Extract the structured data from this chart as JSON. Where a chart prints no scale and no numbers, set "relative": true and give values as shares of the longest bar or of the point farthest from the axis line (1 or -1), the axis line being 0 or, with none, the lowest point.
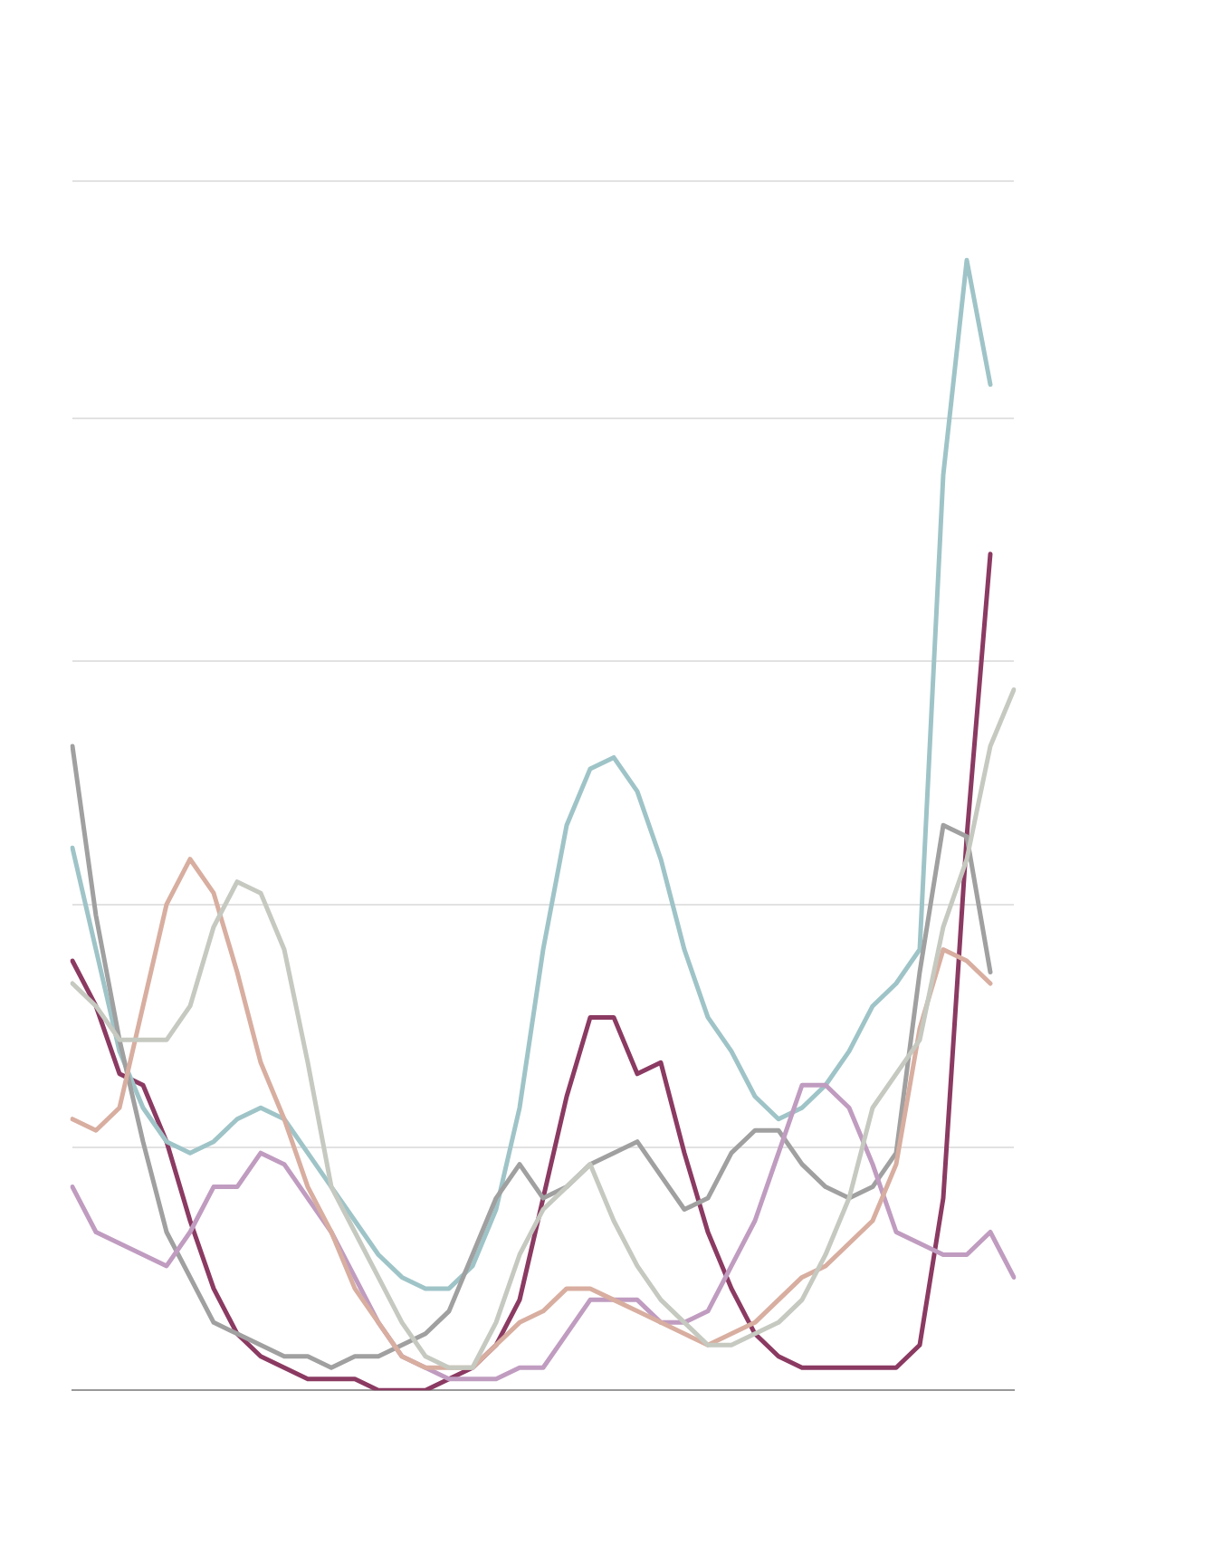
{
  "chart_data": {
    "type": "line",
    "relative": true,
    "grid": "y",
    "legend": false,
    "marker": "none",
    "line_style": "solid",
    "categories": [
      null,
      null,
      null,
      null,
      null,
      null,
      null,
      null,
      null,
      null,
      null,
      null,
      null,
      null,
      null,
      null,
      null,
      null,
      null,
      null,
      null,
      null,
      null,
      null,
      null,
      null,
      null,
      null,
      null,
      null,
      null,
      null,
      null,
      null,
      null,
      null,
      null,
      null,
      null,
      null,
      null
    ],
    "series": [
      {
        "color": "#c5c9c0",
        "values": [
          0.36,
          0.34,
          0.31,
          0.31,
          0.31,
          0.34,
          0.41,
          0.45,
          0.44,
          0.39,
          0.29,
          0.18,
          0.14,
          0.1,
          0.06,
          0.03,
          0.02,
          0.02,
          0.06,
          0.12,
          0.16,
          0.18,
          0.2,
          0.15,
          0.11,
          0.08,
          0.06,
          0.04,
          0.04,
          0.05,
          0.06,
          0.08,
          0.12,
          0.17,
          0.25,
          0.28,
          0.31,
          0.41,
          0.47,
          0.57,
          0.62
        ]
      },
      {
        "color": "#d8aea0",
        "values": [
          0.24,
          0.23,
          0.25,
          0.34,
          0.43,
          0.47,
          0.44,
          0.37,
          0.29,
          0.24,
          0.18,
          0.14,
          0.09,
          0.06,
          0.03,
          0.02,
          0.02,
          0.02,
          0.04,
          0.06,
          0.07,
          0.09,
          0.09,
          0.08,
          0.07,
          0.06,
          0.05,
          0.04,
          0.05,
          0.06,
          0.08,
          0.1,
          0.11,
          0.13,
          0.15,
          0.2,
          0.32,
          0.39,
          0.38,
          0.36,
          null
        ]
      },
      {
        "color": "#c09cc0",
        "values": [
          0.18,
          0.14,
          0.13,
          0.12,
          0.11,
          0.14,
          0.18,
          0.18,
          0.21,
          0.2,
          0.17,
          0.14,
          0.1,
          0.06,
          0.03,
          0.02,
          0.01,
          0.01,
          0.01,
          0.02,
          0.02,
          0.05,
          0.08,
          0.08,
          0.08,
          0.06,
          0.06,
          0.07,
          0.11,
          0.15,
          0.21,
          0.27,
          0.27,
          0.25,
          0.2,
          0.14,
          0.13,
          0.12,
          0.12,
          0.14,
          0.1
        ]
      },
      {
        "color": "#a0a0a0",
        "values": [
          0.57,
          0.42,
          0.31,
          0.22,
          0.14,
          0.1,
          0.06,
          0.05,
          0.04,
          0.03,
          0.03,
          0.02,
          0.03,
          0.03,
          0.04,
          0.05,
          0.07,
          0.12,
          0.17,
          0.2,
          0.17,
          0.18,
          0.2,
          0.21,
          0.22,
          0.19,
          0.16,
          0.17,
          0.21,
          0.23,
          0.23,
          0.2,
          0.18,
          0.17,
          0.18,
          0.21,
          0.37,
          0.5,
          0.49,
          0.37,
          null
        ]
      },
      {
        "color": "#9fc4c8",
        "values": [
          0.48,
          0.39,
          0.3,
          0.25,
          0.22,
          0.21,
          0.22,
          0.24,
          0.25,
          0.24,
          0.21,
          0.18,
          0.15,
          0.12,
          0.1,
          0.09,
          0.09,
          0.11,
          0.16,
          0.25,
          0.39,
          0.5,
          0.55,
          0.56,
          0.53,
          0.47,
          0.39,
          0.33,
          0.3,
          0.26,
          0.24,
          0.25,
          0.27,
          0.3,
          0.34,
          0.36,
          0.39,
          0.81,
          1,
          0.89,
          null
        ]
      },
      {
        "color": "#8b3a62",
        "values": [
          0.38,
          0.34,
          0.28,
          0.27,
          0.22,
          0.15,
          0.09,
          0.05,
          0.03,
          0.02,
          0.01,
          0.01,
          0.01,
          0.0,
          0.0,
          0.0,
          0.01,
          0.02,
          0.04,
          0.08,
          0.17,
          0.26,
          0.33,
          0.33,
          0.28,
          0.29,
          0.21,
          0.14,
          0.09,
          0.05,
          0.03,
          0.02,
          0.02,
          0.02,
          0.02,
          0.02,
          0.04,
          0.17,
          0.49,
          0.74,
          null
        ]
      }
    ]
  }
}
